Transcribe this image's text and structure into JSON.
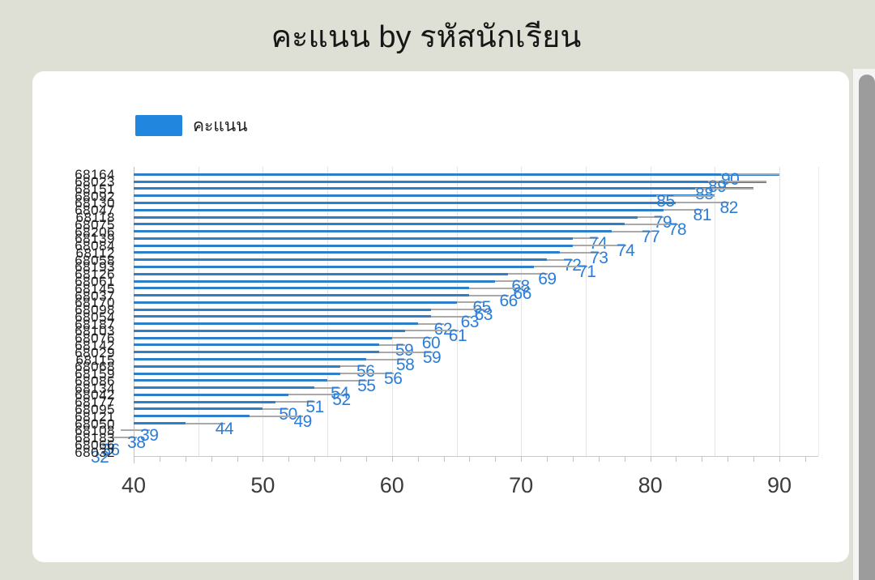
{
  "page": {
    "title": "คะแนน by รหัสนักเรียน"
  },
  "legend": {
    "label": "คะแนน",
    "color": "#2186dd"
  },
  "chart_data": {
    "type": "bar",
    "orientation": "horizontal",
    "title": "คะแนน by รหัสนักเรียน",
    "series_name": "คะแนน",
    "bar_color": "#2e7fc9",
    "label_color": "#2a7dd8",
    "xlim": [
      40,
      93
    ],
    "x_ticks": [
      40,
      50,
      60,
      70,
      80,
      90
    ],
    "minor_tick_step": 2,
    "gridline_step": 5,
    "grid": true,
    "legend_position": "top-left",
    "categories": [
      "68164",
      "68023",
      "68151",
      "68092",
      "68130",
      "68047",
      "68118",
      "68075",
      "68206",
      "68139",
      "68084",
      "68112",
      "68058",
      "68193",
      "68126",
      "68061",
      "68145",
      "68037",
      "68170",
      "68098",
      "68054",
      "68187",
      "68103",
      "68076",
      "68142",
      "68029",
      "68115",
      "68068",
      "68159",
      "68086",
      "68134",
      "68042",
      "68177",
      "68095",
      "68121",
      "68050",
      "68108",
      "68183",
      "68066",
      "68032"
    ],
    "values": [
      90,
      89,
      88,
      85,
      82,
      81,
      79,
      78,
      77,
      74,
      74,
      73,
      72,
      71,
      69,
      68,
      66,
      66,
      65,
      63,
      63,
      62,
      61,
      60,
      59,
      59,
      58,
      56,
      56,
      55,
      54,
      52,
      51,
      50,
      49,
      44,
      39,
      38,
      36,
      32
    ]
  }
}
